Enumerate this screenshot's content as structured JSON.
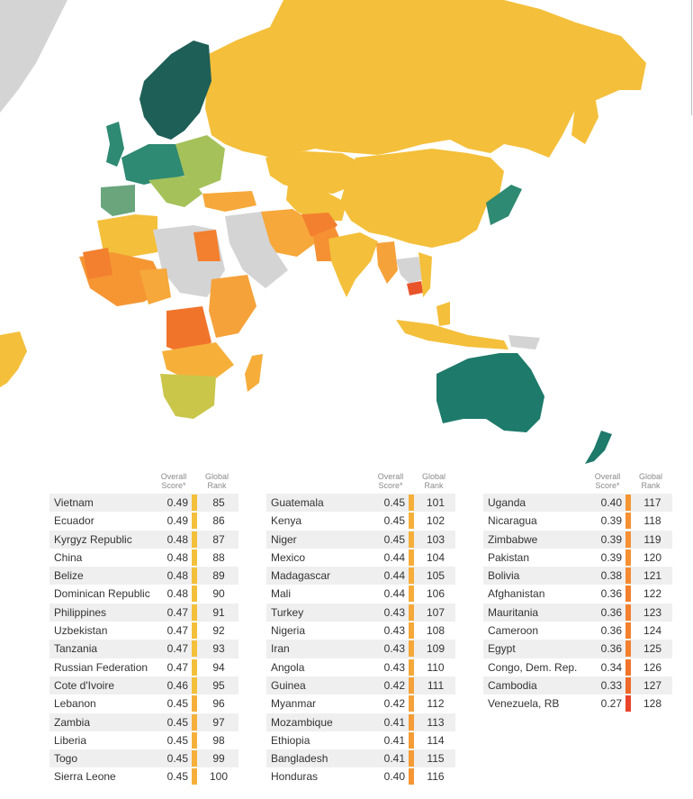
{
  "colors": {
    "no_data": "#d4d4d4",
    "tier_top": "#1e5f57",
    "tier_high": "#2e8a72",
    "tier_upper_mid": "#6aa57c",
    "tier_mid_green": "#a5c15a",
    "tier_yellow_green": "#c9c64a",
    "tier_yellow": "#f4bf3a",
    "tier_light_orange": "#f6a53a",
    "tier_orange": "#f48f2f",
    "tier_dark_orange": "#f0742a",
    "tier_red": "#e9532a",
    "water": "#ffffff"
  },
  "table_headers": {
    "score": [
      "Overall",
      "Score*"
    ],
    "rank": [
      "Global",
      "Rank"
    ]
  },
  "columns": [
    {
      "rows": [
        {
          "country": "Vietnam",
          "score": "0.49",
          "rank": "85",
          "color": "#f4bf3a"
        },
        {
          "country": "Ecuador",
          "score": "0.49",
          "rank": "86",
          "color": "#f4bf3a"
        },
        {
          "country": "Kyrgyz Republic",
          "score": "0.48",
          "rank": "87",
          "color": "#f4bf3a"
        },
        {
          "country": "China",
          "score": "0.48",
          "rank": "88",
          "color": "#f4bf3a"
        },
        {
          "country": "Belize",
          "score": "0.48",
          "rank": "89",
          "color": "#f4bf3a"
        },
        {
          "country": "Dominican Republic",
          "score": "0.48",
          "rank": "90",
          "color": "#f4bf3a"
        },
        {
          "country": "Philippines",
          "score": "0.47",
          "rank": "91",
          "color": "#f4bf3a"
        },
        {
          "country": "Uzbekistan",
          "score": "0.47",
          "rank": "92",
          "color": "#f4bf3a"
        },
        {
          "country": "Tanzania",
          "score": "0.47",
          "rank": "93",
          "color": "#f4bf3a"
        },
        {
          "country": "Russian Federation",
          "score": "0.47",
          "rank": "94",
          "color": "#f4bf3a"
        },
        {
          "country": "Cote d'Ivoire",
          "score": "0.46",
          "rank": "95",
          "color": "#f4bf3a"
        },
        {
          "country": "Lebanon",
          "score": "0.45",
          "rank": "96",
          "color": "#f6b03a"
        },
        {
          "country": "Zambia",
          "score": "0.45",
          "rank": "97",
          "color": "#f6b03a"
        },
        {
          "country": "Liberia",
          "score": "0.45",
          "rank": "98",
          "color": "#f6b03a"
        },
        {
          "country": "Togo",
          "score": "0.45",
          "rank": "99",
          "color": "#f6b03a"
        },
        {
          "country": "Sierra Leone",
          "score": "0.45",
          "rank": "100",
          "color": "#f6b03a"
        }
      ]
    },
    {
      "rows": [
        {
          "country": "Guatemala",
          "score": "0.45",
          "rank": "101",
          "color": "#f6b03a"
        },
        {
          "country": "Kenya",
          "score": "0.45",
          "rank": "102",
          "color": "#f6b03a"
        },
        {
          "country": "Niger",
          "score": "0.45",
          "rank": "103",
          "color": "#f6b03a"
        },
        {
          "country": "Mexico",
          "score": "0.44",
          "rank": "104",
          "color": "#f6ad3a"
        },
        {
          "country": "Madagascar",
          "score": "0.44",
          "rank": "105",
          "color": "#f6ad3a"
        },
        {
          "country": "Mali",
          "score": "0.44",
          "rank": "106",
          "color": "#f6ad3a"
        },
        {
          "country": "Turkey",
          "score": "0.43",
          "rank": "107",
          "color": "#f6a83a"
        },
        {
          "country": "Nigeria",
          "score": "0.43",
          "rank": "108",
          "color": "#f6a83a"
        },
        {
          "country": "Iran",
          "score": "0.43",
          "rank": "109",
          "color": "#f6a83a"
        },
        {
          "country": "Angola",
          "score": "0.43",
          "rank": "110",
          "color": "#f6a83a"
        },
        {
          "country": "Guinea",
          "score": "0.42",
          "rank": "111",
          "color": "#f6a23a"
        },
        {
          "country": "Myanmar",
          "score": "0.42",
          "rank": "112",
          "color": "#f6a23a"
        },
        {
          "country": "Mozambique",
          "score": "0.41",
          "rank": "113",
          "color": "#f59c36"
        },
        {
          "country": "Ethiopia",
          "score": "0.41",
          "rank": "114",
          "color": "#f59c36"
        },
        {
          "country": "Bangladesh",
          "score": "0.41",
          "rank": "115",
          "color": "#f59c36"
        },
        {
          "country": "Honduras",
          "score": "0.40",
          "rank": "116",
          "color": "#f59633"
        }
      ]
    },
    {
      "rows": [
        {
          "country": "Uganda",
          "score": "0.40",
          "rank": "117",
          "color": "#f59633"
        },
        {
          "country": "Nicaragua",
          "score": "0.39",
          "rank": "118",
          "color": "#f59033"
        },
        {
          "country": "Zimbabwe",
          "score": "0.39",
          "rank": "119",
          "color": "#f59033"
        },
        {
          "country": "Pakistan",
          "score": "0.39",
          "rank": "120",
          "color": "#f59033"
        },
        {
          "country": "Bolivia",
          "score": "0.38",
          "rank": "121",
          "color": "#f48a31"
        },
        {
          "country": "Afghanistan",
          "score": "0.36",
          "rank": "122",
          "color": "#f3802e"
        },
        {
          "country": "Mauritania",
          "score": "0.36",
          "rank": "123",
          "color": "#f3802e"
        },
        {
          "country": "Cameroon",
          "score": "0.36",
          "rank": "124",
          "color": "#f3802e"
        },
        {
          "country": "Egypt",
          "score": "0.36",
          "rank": "125",
          "color": "#f3802e"
        },
        {
          "country": "Congo, Dem. Rep.",
          "score": "0.34",
          "rank": "126",
          "color": "#f1742b"
        },
        {
          "country": "Cambodia",
          "score": "0.33",
          "rank": "127",
          "color": "#ef6a2a"
        },
        {
          "country": "Venezuela, RB",
          "score": "0.27",
          "rank": "128",
          "color": "#e9442a"
        }
      ]
    }
  ]
}
